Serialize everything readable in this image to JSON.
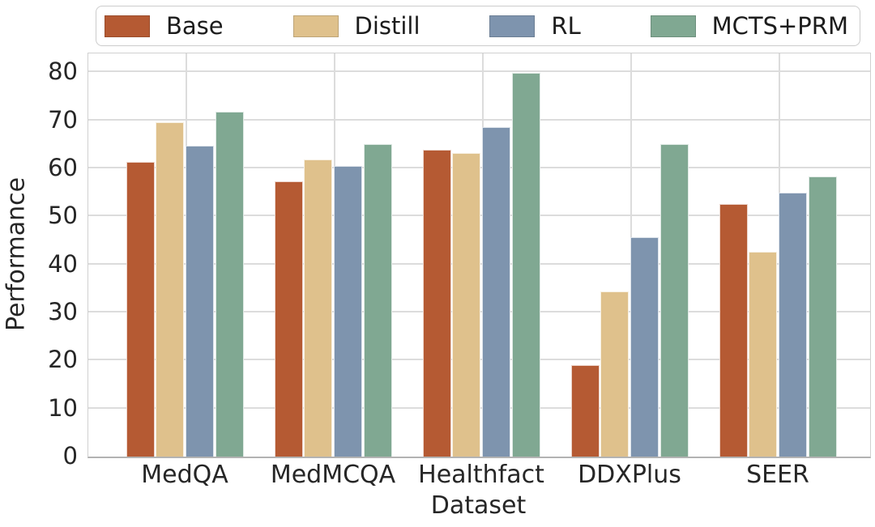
{
  "chart_data": {
    "type": "bar",
    "title": "",
    "xlabel": "Dataset",
    "ylabel": "Performance",
    "categories": [
      "MedQA",
      "MedMCQA",
      "Healthfact",
      "DDXPlus",
      "SEER"
    ],
    "series": [
      {
        "name": "Base",
        "color": "#b55a33",
        "values": [
          61.4,
          57.2,
          63.8,
          19.0,
          52.5
        ]
      },
      {
        "name": "Distill",
        "color": "#dfc18c",
        "values": [
          69.5,
          61.9,
          63.2,
          34.4,
          42.6
        ]
      },
      {
        "name": "RL",
        "color": "#7e94ae",
        "values": [
          64.7,
          60.5,
          68.6,
          45.6,
          55.0
        ]
      },
      {
        "name": "MCTS+PRM",
        "color": "#80a892",
        "values": [
          71.8,
          65.1,
          79.9,
          65.1,
          58.3
        ]
      }
    ],
    "y_ticks": [
      0,
      10,
      20,
      30,
      40,
      50,
      60,
      70,
      80
    ],
    "ylim": [
      0,
      83.9
    ],
    "grid": true,
    "legend_position": "top",
    "colors": {
      "grid": "#dcdcdc",
      "spine": "#b3b3b3",
      "text": "#262626",
      "background": "#ffffff"
    }
  }
}
